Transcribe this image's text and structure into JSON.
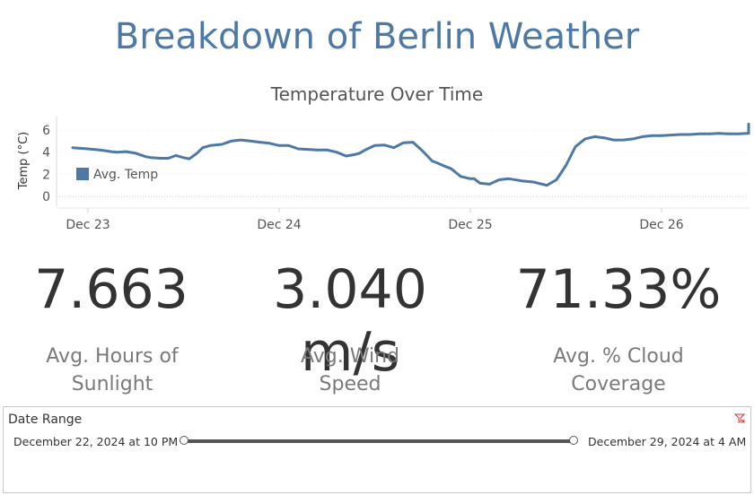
{
  "dashboard": {
    "title": "Breakdown of Berlin Weather"
  },
  "chart_data": {
    "type": "line",
    "title": "Temperature Over Time",
    "ylabel": "Temp (°C)",
    "xlabel": "",
    "legend": {
      "label": "Avg. Temp",
      "position": "left-inside"
    },
    "ylim": [
      -0.5,
      6.8
    ],
    "yticks": [
      "0",
      "2",
      "4",
      "6"
    ],
    "xticks": [
      "Dec 23",
      "Dec 24",
      "Dec 25",
      "Dec 26"
    ],
    "grid": "horizontal-dotted",
    "color": "#4e79a7",
    "series": [
      {
        "x": [
          -0.08,
          0.0,
          0.06,
          0.1,
          0.12,
          0.15,
          0.2,
          0.25,
          0.3,
          0.33,
          0.38,
          0.42,
          0.46,
          0.5,
          0.53,
          0.57,
          0.6,
          0.64,
          0.7,
          0.75,
          0.8,
          0.85,
          0.9,
          0.95,
          1.0,
          1.05,
          1.1,
          1.15,
          1.2,
          1.25,
          1.3,
          1.35,
          1.4,
          1.42,
          1.45,
          1.5,
          1.55,
          1.6,
          1.65,
          1.7,
          1.75,
          1.8,
          1.83,
          1.87,
          1.9,
          1.95,
          2.0,
          2.02,
          2.05,
          2.1,
          2.15,
          2.2,
          2.27,
          2.33,
          2.4,
          2.45,
          2.5,
          2.55,
          2.6,
          2.65,
          2.7,
          2.75,
          2.8,
          2.85,
          2.9,
          2.95,
          3.0,
          3.05,
          3.1,
          3.15,
          3.2,
          3.25,
          3.3,
          3.35,
          3.4,
          3.45,
          3.5,
          3.55,
          3.6,
          3.65,
          3.7,
          3.75,
          3.8,
          3.85,
          3.9,
          3.93
        ],
        "y": [
          4.4,
          4.3,
          4.2,
          4.1,
          4.05,
          4.0,
          4.05,
          3.9,
          3.6,
          3.5,
          3.45,
          3.45,
          3.7,
          3.5,
          3.4,
          3.9,
          4.4,
          4.6,
          4.7,
          5.0,
          5.1,
          5.0,
          4.9,
          4.8,
          4.6,
          4.6,
          4.3,
          4.25,
          4.2,
          4.2,
          4.0,
          3.65,
          3.8,
          3.9,
          4.2,
          4.6,
          4.65,
          4.4,
          4.85,
          4.9,
          4.1,
          3.2,
          3.0,
          2.7,
          2.5,
          1.8,
          1.6,
          1.6,
          1.2,
          1.1,
          1.5,
          1.6,
          1.4,
          1.3,
          1.0,
          1.5,
          2.8,
          4.5,
          5.2,
          5.4,
          5.3,
          5.1,
          5.1,
          5.2,
          5.4,
          5.5,
          5.5,
          5.55,
          5.6,
          5.6,
          5.65,
          5.65,
          5.7,
          5.65,
          5.65,
          5.7,
          5.8,
          5.7,
          5.8,
          5.75,
          5.8,
          5.9,
          6.0,
          6.1,
          6.3,
          6.55
        ]
      }
    ]
  },
  "kpis": [
    {
      "value": "7.663",
      "label_line1": "Avg. Hours of",
      "label_line2": "Sunlight"
    },
    {
      "value": "3.040 m/s",
      "label_line1": "Avg. Wind",
      "label_line2": "Speed"
    },
    {
      "value": "71.33%",
      "label_line1": "Avg. % Cloud",
      "label_line2": "Coverage"
    }
  ],
  "filter": {
    "title": "Date Range",
    "start": "December 22, 2024 at 10 PM",
    "end": "December 29, 2024 at 4 AM",
    "clear_icon": "clear-filter-icon",
    "track_color": "#555555"
  }
}
